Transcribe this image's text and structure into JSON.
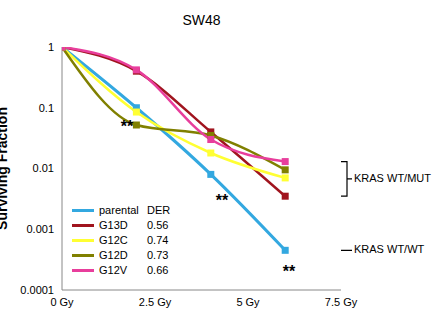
{
  "chart_data": {
    "type": "line",
    "title": "SW48",
    "y_label": "Surviving Fraction",
    "log": "y",
    "grid": false,
    "legend": "lower left",
    "legend_title": "DER",
    "x": [
      0,
      2,
      4,
      6
    ],
    "xlim": [
      0,
      7.5
    ],
    "xticks": [
      {
        "value": 0,
        "label": "0 Gy"
      },
      {
        "value": 2.5,
        "label": "2.5 Gy"
      },
      {
        "value": 5,
        "label": "5 Gy"
      },
      {
        "value": 7.5,
        "label": "7.5 Gy"
      }
    ],
    "ylim": [
      0.0001,
      1
    ],
    "yticks": [
      0.0001,
      0.001,
      0.01,
      0.1,
      1
    ],
    "marker": "square",
    "series": [
      {
        "name": "parental",
        "color": "#33a8e0",
        "values": [
          1,
          0.1,
          0.008,
          0.00045
        ]
      },
      {
        "name": "G13D",
        "der": 0.56,
        "color": "#a0141e",
        "values": [
          1,
          0.4,
          0.04,
          0.0035
        ]
      },
      {
        "name": "G12C",
        "der": 0.74,
        "color": "#ffff33",
        "values": [
          1,
          0.085,
          0.018,
          0.007
        ]
      },
      {
        "name": "G12D",
        "der": 0.73,
        "color": "#808000",
        "values": [
          1,
          0.052,
          0.035,
          0.0095
        ]
      },
      {
        "name": "G12V",
        "der": 0.66,
        "color": "#e83e9c",
        "values": [
          1,
          0.42,
          0.03,
          0.013
        ]
      }
    ],
    "annotations": [
      {
        "text": "**",
        "x": 1.75,
        "y": 0.05
      },
      {
        "text": "**",
        "x": 4.3,
        "y": 0.003
      },
      {
        "text": "**",
        "x": 6.1,
        "y": 0.0002
      }
    ],
    "brackets": [
      {
        "text": "KRAS WT/MUT",
        "ylim": [
          0.0035,
          0.013
        ]
      },
      {
        "text": "KRAS WT/WT",
        "ylim": [
          0.00045,
          0.00045
        ]
      }
    ]
  }
}
